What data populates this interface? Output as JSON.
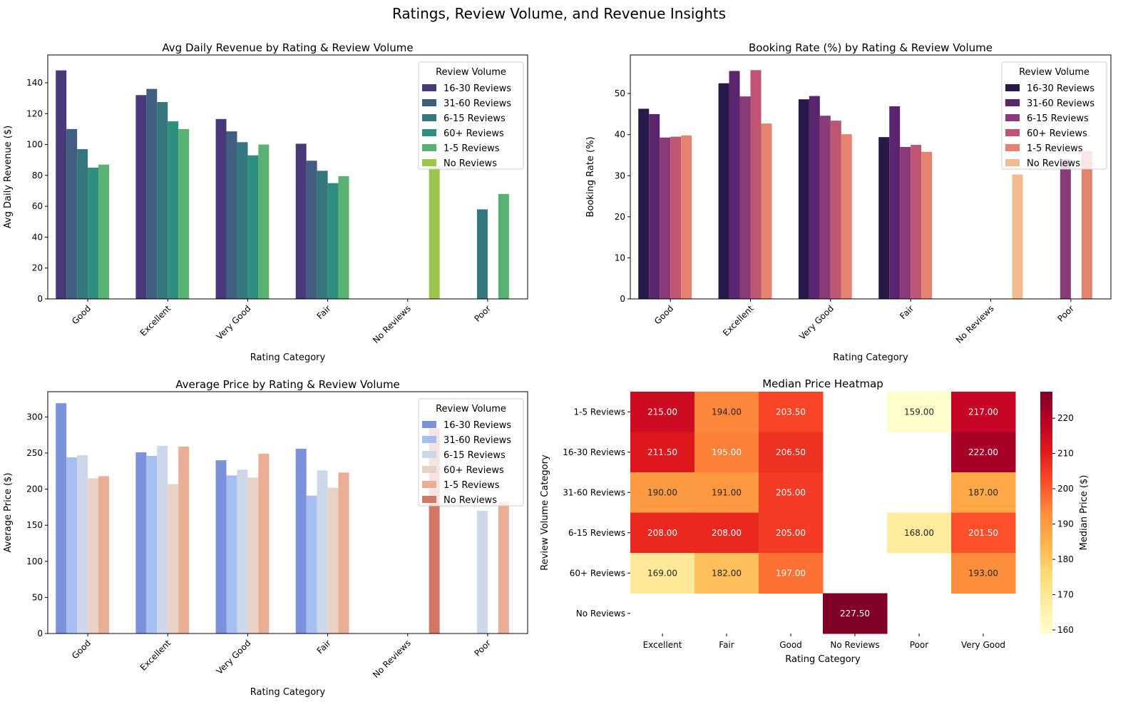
{
  "suptitle": "Ratings, Review Volume, and Revenue Insights",
  "chart_data": [
    {
      "type": "bar",
      "title": "Avg Daily Revenue by Rating & Review Volume",
      "xlabel": "Rating Category",
      "ylabel": "Avg Daily Revenue ($)",
      "ylim": [
        0,
        158
      ],
      "yticks": [
        0,
        20,
        40,
        60,
        80,
        100,
        120,
        140
      ],
      "categories": [
        "Good",
        "Excellent",
        "Very Good",
        "Fair",
        "No Reviews",
        "Poor"
      ],
      "legend_title": "Review Volume",
      "legend_position": "top-right",
      "series": [
        {
          "name": "16-30 Reviews",
          "color": "#48397a",
          "values": [
            148,
            132,
            116.5,
            100.5,
            null,
            null
          ]
        },
        {
          "name": "31-60 Reviews",
          "color": "#405e82",
          "values": [
            110,
            136,
            108.5,
            89.5,
            null,
            null
          ]
        },
        {
          "name": "6-15 Reviews",
          "color": "#35767f",
          "values": [
            97,
            127.5,
            101.5,
            83,
            null,
            58
          ]
        },
        {
          "name": "60+ Reviews",
          "color": "#2f8f7e",
          "values": [
            85,
            115,
            93,
            75,
            null,
            null
          ]
        },
        {
          "name": "1-5 Reviews",
          "color": "#59b174",
          "values": [
            87,
            110,
            100,
            79.5,
            null,
            68
          ]
        },
        {
          "name": "No Reviews",
          "color": "#9bc54d",
          "values": [
            null,
            null,
            null,
            null,
            86,
            null
          ]
        }
      ]
    },
    {
      "type": "bar",
      "title": "Booking Rate (%) by Rating & Review Volume",
      "xlabel": "Rating Category",
      "ylabel": "Booking Rate (%)",
      "ylim": [
        0,
        59.4
      ],
      "yticks": [
        0,
        10,
        20,
        30,
        40,
        50
      ],
      "categories": [
        "Good",
        "Excellent",
        "Very Good",
        "Fair",
        "No Reviews",
        "Poor"
      ],
      "legend_title": "Review Volume",
      "legend_position": "top-right",
      "series": [
        {
          "name": "16-30 Reviews",
          "color": "#271a48",
          "values": [
            46.3,
            52.5,
            48.6,
            39.4,
            null,
            null
          ]
        },
        {
          "name": "31-60 Reviews",
          "color": "#5a246e",
          "values": [
            45,
            55.5,
            49.4,
            46.9,
            null,
            null
          ]
        },
        {
          "name": "6-15 Reviews",
          "color": "#8a3a78",
          "values": [
            39.3,
            49.3,
            44.6,
            37,
            null,
            34
          ]
        },
        {
          "name": "60+ Reviews",
          "color": "#c05573",
          "values": [
            39.5,
            55.7,
            43.4,
            37.5,
            null,
            null
          ]
        },
        {
          "name": "1-5 Reviews",
          "color": "#e58270",
          "values": [
            39.8,
            42.7,
            40.1,
            35.8,
            null,
            36
          ]
        },
        {
          "name": "No Reviews",
          "color": "#f0bb8e",
          "values": [
            null,
            null,
            null,
            null,
            30.3,
            null
          ]
        }
      ]
    },
    {
      "type": "bar",
      "title": "Average Price by Rating & Review Volume",
      "xlabel": "Rating Category",
      "ylabel": "Average Price ($)",
      "ylim": [
        0,
        335
      ],
      "yticks": [
        0,
        50,
        100,
        150,
        200,
        250,
        300
      ],
      "categories": [
        "Good",
        "Excellent",
        "Very Good",
        "Fair",
        "No Reviews",
        "Poor"
      ],
      "legend_title": "Review Volume",
      "legend_position": "top-right",
      "series": [
        {
          "name": "16-30 Reviews",
          "color": "#7a93dc",
          "values": [
            319,
            251,
            240,
            256,
            null,
            null
          ]
        },
        {
          "name": "31-60 Reviews",
          "color": "#a6bff0",
          "values": [
            244,
            246,
            219,
            191,
            null,
            null
          ]
        },
        {
          "name": "6-15 Reviews",
          "color": "#cdd7ea",
          "values": [
            247,
            260,
            227,
            226,
            null,
            170
          ]
        },
        {
          "name": "60+ Reviews",
          "color": "#e8d2c6",
          "values": [
            215,
            207,
            216,
            202,
            null,
            null
          ]
        },
        {
          "name": "1-5 Reviews",
          "color": "#eaae96",
          "values": [
            218,
            259,
            249,
            223,
            null,
            183
          ]
        },
        {
          "name": "No Reviews",
          "color": "#d27766",
          "values": [
            null,
            null,
            null,
            null,
            284,
            null
          ]
        }
      ]
    },
    {
      "type": "heatmap",
      "title": "Median Price Heatmap",
      "xlabel": "Rating Category",
      "ylabel": "Review Volume Category",
      "colorbar_label": "Median Price ($)",
      "vmin": 159,
      "vmax": 227.5,
      "colorbar_ticks": [
        160,
        170,
        180,
        190,
        200,
        210,
        220
      ],
      "x": [
        "Excellent",
        "Fair",
        "Good",
        "No Reviews",
        "Poor",
        "Very Good"
      ],
      "y": [
        "1-5 Reviews",
        "16-30 Reviews",
        "31-60 Reviews",
        "6-15 Reviews",
        "60+ Reviews",
        "No Reviews"
      ],
      "values": [
        [
          215,
          194,
          203.5,
          null,
          159,
          217
        ],
        [
          211.5,
          195,
          206.5,
          null,
          null,
          222
        ],
        [
          190,
          191,
          205,
          null,
          null,
          187
        ],
        [
          208,
          208,
          205,
          null,
          168,
          201.5
        ],
        [
          169,
          182,
          197,
          null,
          null,
          193
        ],
        [
          null,
          null,
          null,
          227.5,
          null,
          null
        ]
      ],
      "labels": [
        [
          "215.00",
          "194.00",
          "203.50",
          "",
          "159.00",
          "217.00"
        ],
        [
          "211.50",
          "195.00",
          "206.50",
          "",
          "",
          "222.00"
        ],
        [
          "190.00",
          "191.00",
          "205.00",
          "",
          "",
          "187.00"
        ],
        [
          "208.00",
          "208.00",
          "205.00",
          "",
          "168.00",
          "201.50"
        ],
        [
          "169.00",
          "182.00",
          "197.00",
          "",
          "",
          "193.00"
        ],
        [
          "",
          "",
          "",
          "227.50",
          "",
          ""
        ]
      ]
    }
  ]
}
